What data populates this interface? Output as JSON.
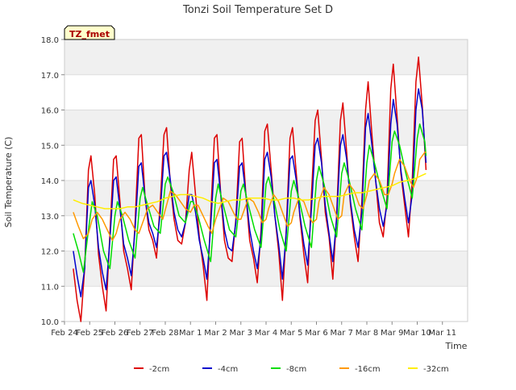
{
  "chart_data": {
    "type": "line",
    "title": "Tonzi Soil Temperature Set D",
    "xlabel": "Time",
    "ylabel": "Soil Temperature (C)",
    "xlim": [
      0,
      16
    ],
    "ylim": [
      10.0,
      18.0
    ],
    "x_ticks": [
      {
        "x": 0,
        "label": "Feb 24"
      },
      {
        "x": 1,
        "label": "Feb 25"
      },
      {
        "x": 2,
        "label": "Feb 26"
      },
      {
        "x": 3,
        "label": "Feb 27"
      },
      {
        "x": 4,
        "label": "Feb 28"
      },
      {
        "x": 5,
        "label": "Mar 1"
      },
      {
        "x": 6,
        "label": "Mar 2"
      },
      {
        "x": 7,
        "label": "Mar 3"
      },
      {
        "x": 8,
        "label": "Mar 4"
      },
      {
        "x": 9,
        "label": "Mar 5"
      },
      {
        "x": 10,
        "label": "Mar 6"
      },
      {
        "x": 11,
        "label": "Mar 7"
      },
      {
        "x": 12,
        "label": "Mar 8"
      },
      {
        "x": 13,
        "label": "Mar 9"
      },
      {
        "x": 14,
        "label": "Mar 10"
      },
      {
        "x": 15,
        "label": "Mar 11"
      }
    ],
    "y_ticks": [
      10.0,
      11.0,
      12.0,
      13.0,
      14.0,
      15.0,
      16.0,
      17.0,
      18.0
    ],
    "grid": true,
    "legend_position": "bottom",
    "annotation": "TZ_fmet",
    "series": [
      {
        "name": "-2cm",
        "color": "#dd0000",
        "x": [
          0.35,
          0.5,
          0.65,
          0.8,
          0.95,
          1.05,
          1.2,
          1.35,
          1.5,
          1.65,
          1.8,
          1.95,
          2.05,
          2.2,
          2.35,
          2.5,
          2.65,
          2.8,
          2.95,
          3.05,
          3.2,
          3.35,
          3.5,
          3.65,
          3.8,
          3.95,
          4.05,
          4.2,
          4.35,
          4.5,
          4.65,
          4.8,
          4.95,
          5.05,
          5.2,
          5.35,
          5.5,
          5.65,
          5.8,
          5.95,
          6.05,
          6.2,
          6.35,
          6.5,
          6.65,
          6.8,
          6.95,
          7.05,
          7.2,
          7.35,
          7.5,
          7.65,
          7.8,
          7.95,
          8.05,
          8.2,
          8.35,
          8.5,
          8.65,
          8.8,
          8.95,
          9.05,
          9.2,
          9.35,
          9.5,
          9.65,
          9.8,
          9.95,
          10.05,
          10.2,
          10.35,
          10.5,
          10.65,
          10.8,
          10.95,
          11.05,
          11.2,
          11.35,
          11.5,
          11.65,
          11.8,
          11.95,
          12.05,
          12.2,
          12.35,
          12.5,
          12.65,
          12.8,
          12.95,
          13.05,
          13.2,
          13.35,
          13.5,
          13.65,
          13.8,
          13.95,
          14.05,
          14.2,
          14.35
        ],
        "values": [
          11.5,
          10.6,
          10.0,
          11.5,
          14.3,
          14.7,
          13.6,
          11.9,
          11.0,
          10.3,
          12.5,
          14.6,
          14.7,
          13.4,
          12.0,
          11.5,
          10.9,
          12.8,
          15.2,
          15.3,
          13.5,
          12.6,
          12.3,
          11.8,
          13.4,
          15.3,
          15.5,
          13.9,
          12.9,
          12.3,
          12.2,
          12.8,
          14.3,
          14.8,
          13.6,
          12.4,
          11.6,
          10.6,
          13.0,
          15.2,
          15.3,
          13.6,
          12.3,
          11.8,
          11.7,
          12.9,
          15.1,
          15.2,
          13.6,
          12.3,
          11.8,
          11.1,
          12.6,
          15.4,
          15.6,
          14.3,
          13.0,
          12.0,
          10.6,
          12.6,
          15.2,
          15.5,
          14.2,
          12.9,
          11.9,
          11.1,
          13.6,
          15.7,
          16.0,
          14.6,
          13.1,
          12.4,
          11.2,
          13.0,
          15.7,
          16.2,
          14.8,
          13.3,
          12.4,
          11.7,
          13.4,
          16.0,
          16.8,
          15.3,
          14.0,
          12.8,
          12.4,
          13.5,
          16.6,
          17.3,
          15.8,
          14.2,
          13.3,
          12.4,
          14.0,
          16.8,
          17.5,
          16.1,
          14.3
        ]
      },
      {
        "name": "-4cm",
        "color": "#0000cc",
        "x": [
          0.35,
          0.5,
          0.65,
          0.8,
          0.95,
          1.05,
          1.2,
          1.35,
          1.5,
          1.65,
          1.8,
          1.95,
          2.05,
          2.2,
          2.35,
          2.5,
          2.65,
          2.8,
          2.95,
          3.05,
          3.2,
          3.35,
          3.5,
          3.65,
          3.8,
          3.95,
          4.05,
          4.2,
          4.35,
          4.5,
          4.65,
          4.8,
          4.95,
          5.05,
          5.2,
          5.35,
          5.5,
          5.65,
          5.8,
          5.95,
          6.05,
          6.2,
          6.35,
          6.5,
          6.65,
          6.8,
          6.95,
          7.05,
          7.2,
          7.35,
          7.5,
          7.65,
          7.8,
          7.95,
          8.05,
          8.2,
          8.35,
          8.5,
          8.65,
          8.8,
          8.95,
          9.05,
          9.2,
          9.35,
          9.5,
          9.65,
          9.8,
          9.95,
          10.05,
          10.2,
          10.35,
          10.5,
          10.65,
          10.8,
          10.95,
          11.05,
          11.2,
          11.35,
          11.5,
          11.65,
          11.8,
          11.95,
          12.05,
          12.2,
          12.35,
          12.5,
          12.65,
          12.8,
          12.95,
          13.05,
          13.2,
          13.35,
          13.5,
          13.65,
          13.8,
          13.95,
          14.05,
          14.2,
          14.35
        ],
        "values": [
          12.0,
          11.3,
          10.7,
          11.5,
          13.8,
          14.0,
          13.3,
          12.1,
          11.4,
          10.9,
          12.3,
          14.0,
          14.1,
          13.2,
          12.2,
          11.8,
          11.3,
          12.6,
          14.4,
          14.5,
          13.5,
          12.8,
          12.5,
          12.1,
          13.1,
          14.7,
          14.8,
          14.0,
          13.1,
          12.6,
          12.4,
          12.8,
          13.6,
          13.6,
          13.1,
          12.3,
          11.8,
          11.2,
          12.7,
          14.5,
          14.6,
          13.6,
          12.6,
          12.1,
          12.0,
          12.8,
          14.4,
          14.5,
          13.6,
          12.6,
          12.0,
          11.5,
          12.4,
          14.6,
          14.8,
          14.1,
          13.0,
          12.2,
          11.2,
          12.5,
          14.6,
          14.7,
          14.0,
          13.0,
          12.2,
          11.6,
          13.2,
          15.0,
          15.2,
          14.5,
          13.3,
          12.5,
          11.7,
          12.9,
          15.0,
          15.3,
          14.6,
          13.4,
          12.6,
          12.1,
          13.1,
          15.5,
          15.9,
          15.0,
          14.0,
          13.2,
          12.7,
          13.3,
          15.6,
          16.3,
          15.6,
          14.3,
          13.5,
          12.8,
          13.6,
          16.0,
          16.6,
          16.0,
          14.5
        ]
      },
      {
        "name": "-8cm",
        "color": "#00dd00",
        "x": [
          0.35,
          0.55,
          0.75,
          0.95,
          1.1,
          1.3,
          1.55,
          1.8,
          2.0,
          2.1,
          2.3,
          2.55,
          2.8,
          3.0,
          3.1,
          3.3,
          3.55,
          3.8,
          4.0,
          4.1,
          4.3,
          4.55,
          4.8,
          5.0,
          5.1,
          5.3,
          5.55,
          5.8,
          6.0,
          6.1,
          6.3,
          6.55,
          6.8,
          7.0,
          7.1,
          7.3,
          7.55,
          7.8,
          8.0,
          8.1,
          8.3,
          8.55,
          8.8,
          9.0,
          9.1,
          9.3,
          9.55,
          9.8,
          10.0,
          10.1,
          10.3,
          10.55,
          10.8,
          11.0,
          11.1,
          11.3,
          11.55,
          11.8,
          12.0,
          12.1,
          12.3,
          12.55,
          12.8,
          13.0,
          13.1,
          13.3,
          13.55,
          13.8,
          14.0,
          14.1,
          14.3,
          14.35
        ],
        "values": [
          12.5,
          12.0,
          11.4,
          12.6,
          13.4,
          13.0,
          12.0,
          11.5,
          13.0,
          13.4,
          13.0,
          12.3,
          11.8,
          13.5,
          13.8,
          13.3,
          12.7,
          12.5,
          13.9,
          14.1,
          13.7,
          13.0,
          12.8,
          13.4,
          13.4,
          13.0,
          12.3,
          11.7,
          13.5,
          13.9,
          13.3,
          12.6,
          12.4,
          13.7,
          13.9,
          13.3,
          12.6,
          12.1,
          13.9,
          14.1,
          13.5,
          12.6,
          12.0,
          13.7,
          14.0,
          13.5,
          12.7,
          12.1,
          14.0,
          14.4,
          13.9,
          13.0,
          12.4,
          14.2,
          14.5,
          14.0,
          13.2,
          12.6,
          14.5,
          15.0,
          14.5,
          13.8,
          13.2,
          15.1,
          15.4,
          15.0,
          14.2,
          13.5,
          15.2,
          15.6,
          15.1,
          14.7
        ]
      },
      {
        "name": "-16cm",
        "color": "#ff9900",
        "x": [
          0.35,
          0.55,
          0.75,
          0.95,
          1.1,
          1.3,
          1.5,
          1.7,
          1.9,
          2.05,
          2.2,
          2.4,
          2.6,
          2.8,
          2.95,
          3.1,
          3.3,
          3.5,
          3.7,
          3.9,
          4.05,
          4.2,
          4.4,
          4.6,
          4.8,
          5.0,
          5.15,
          5.3,
          5.5,
          5.7,
          5.85,
          6.0,
          6.1,
          6.3,
          6.5,
          6.7,
          6.85,
          7.0,
          7.1,
          7.3,
          7.5,
          7.7,
          7.85,
          8.0,
          8.1,
          8.3,
          8.5,
          8.7,
          8.85,
          9.0,
          9.1,
          9.3,
          9.5,
          9.7,
          9.85,
          10.0,
          10.1,
          10.3,
          10.5,
          10.7,
          10.85,
          11.0,
          11.1,
          11.3,
          11.5,
          11.7,
          11.85,
          12.0,
          12.1,
          12.3,
          12.5,
          12.7,
          12.85,
          13.0,
          13.1,
          13.3,
          13.5,
          13.7,
          13.85,
          14.0,
          14.1,
          14.3,
          14.35
        ],
        "values": [
          13.1,
          12.7,
          12.35,
          12.5,
          12.9,
          13.1,
          12.9,
          12.6,
          12.3,
          12.5,
          12.9,
          13.1,
          12.9,
          12.6,
          12.5,
          12.8,
          13.2,
          13.3,
          13.1,
          12.9,
          13.3,
          13.7,
          13.6,
          13.4,
          13.2,
          13.1,
          13.3,
          13.3,
          13.0,
          12.7,
          12.5,
          12.9,
          13.1,
          13.5,
          13.4,
          13.1,
          12.9,
          12.9,
          13.1,
          13.5,
          13.4,
          13.1,
          12.8,
          12.9,
          13.2,
          13.6,
          13.4,
          13.0,
          12.7,
          12.8,
          13.1,
          13.5,
          13.4,
          13.0,
          12.8,
          12.9,
          13.4,
          13.8,
          13.6,
          13.2,
          12.9,
          13.0,
          13.6,
          13.9,
          13.7,
          13.3,
          13.2,
          13.6,
          14.0,
          14.2,
          14.0,
          13.6,
          13.6,
          13.9,
          14.2,
          14.6,
          14.4,
          14.0,
          13.8,
          14.1,
          14.6,
          14.8,
          14.8
        ]
      },
      {
        "name": "-32cm",
        "color": "#ffee00",
        "x": [
          0.35,
          0.7,
          1.0,
          1.3,
          1.6,
          1.9,
          2.2,
          2.5,
          2.8,
          3.1,
          3.4,
          3.7,
          4.0,
          4.3,
          4.6,
          4.9,
          5.2,
          5.5,
          5.8,
          6.1,
          6.4,
          6.7,
          7.0,
          7.3,
          7.6,
          7.9,
          8.2,
          8.5,
          8.8,
          9.1,
          9.4,
          9.7,
          10.0,
          10.3,
          10.6,
          10.9,
          11.2,
          11.5,
          11.8,
          12.1,
          12.4,
          12.7,
          13.0,
          13.3,
          13.6,
          13.9,
          14.2,
          14.35
        ],
        "values": [
          13.45,
          13.35,
          13.3,
          13.25,
          13.2,
          13.2,
          13.2,
          13.25,
          13.25,
          13.3,
          13.35,
          13.4,
          13.5,
          13.55,
          13.6,
          13.6,
          13.55,
          13.5,
          13.4,
          13.35,
          13.4,
          13.45,
          13.45,
          13.5,
          13.5,
          13.5,
          13.45,
          13.45,
          13.5,
          13.5,
          13.45,
          13.45,
          13.5,
          13.55,
          13.55,
          13.55,
          13.6,
          13.65,
          13.65,
          13.7,
          13.75,
          13.8,
          13.85,
          13.95,
          14.0,
          14.05,
          14.15,
          14.2
        ]
      }
    ]
  }
}
